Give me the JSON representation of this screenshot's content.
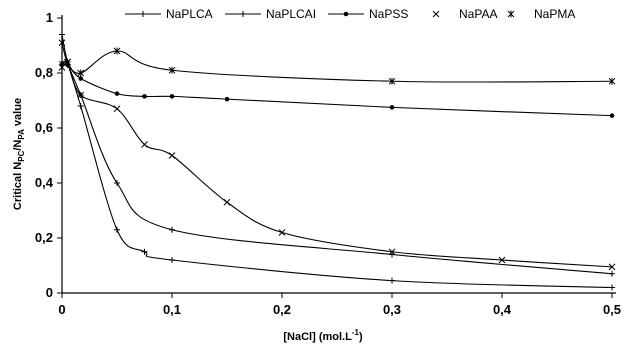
{
  "chart_data": {
    "type": "scatter",
    "title": "",
    "xlim": [
      0,
      0.5
    ],
    "ylim": [
      0,
      1
    ],
    "grid": false,
    "legend_position": "top",
    "x_ticks": [
      "0",
      "0,1",
      "0,2",
      "0,3",
      "0,4",
      "0,5"
    ],
    "y_ticks": [
      "0",
      "0,2",
      "0,4",
      "0,6",
      "0,8",
      "1"
    ],
    "xlabel": {
      "main": "[NaCl] (mol.L",
      "sup": "-1",
      "end": ")"
    },
    "ylabel": {
      "a": "Critical N",
      "sub1": "PC",
      "b": "/N",
      "sub2": "PA",
      "c": " value"
    },
    "series": [
      {
        "name": "NaPLCA",
        "marker": "dash",
        "show_line": true,
        "color": "#000000",
        "points": [
          [
            0,
            0.94
          ],
          [
            0.005,
            0.84
          ],
          [
            0.017,
            0.68
          ],
          [
            0.05,
            0.23
          ],
          [
            0.075,
            0.15
          ],
          [
            0.1,
            0.12
          ],
          [
            0.3,
            0.045
          ],
          [
            0.5,
            0.02
          ]
        ]
      },
      {
        "name": "NaPLCAI",
        "marker": "dash",
        "show_line": true,
        "color": "#000000",
        "points": [
          [
            0,
            0.84
          ],
          [
            0.005,
            0.83
          ],
          [
            0.017,
            0.72
          ],
          [
            0.05,
            0.4
          ],
          [
            0.1,
            0.23
          ],
          [
            0.3,
            0.14
          ],
          [
            0.5,
            0.07
          ]
        ]
      },
      {
        "name": "NaPSS",
        "marker": "dot",
        "show_line": true,
        "color": "#000000",
        "points": [
          [
            0,
            0.83
          ],
          [
            0.005,
            0.83
          ],
          [
            0.017,
            0.78
          ],
          [
            0.05,
            0.725
          ],
          [
            0.075,
            0.715
          ],
          [
            0.1,
            0.715
          ],
          [
            0.15,
            0.705
          ],
          [
            0.3,
            0.675
          ],
          [
            0.5,
            0.645
          ]
        ]
      },
      {
        "name": "NaPAA",
        "marker": "x",
        "show_line": true,
        "color": "#000000",
        "points": [
          [
            0,
            0.82
          ],
          [
            0.005,
            0.84
          ],
          [
            0.017,
            0.72
          ],
          [
            0.05,
            0.67
          ],
          [
            0.075,
            0.54
          ],
          [
            0.1,
            0.5
          ],
          [
            0.15,
            0.33
          ],
          [
            0.2,
            0.22
          ],
          [
            0.3,
            0.15
          ],
          [
            0.4,
            0.12
          ],
          [
            0.5,
            0.095
          ]
        ]
      },
      {
        "name": "NaPMA",
        "marker": "star",
        "show_line": true,
        "color": "#000000",
        "points": [
          [
            0,
            0.91
          ],
          [
            0.005,
            0.84
          ],
          [
            0.017,
            0.8
          ],
          [
            0.05,
            0.88
          ],
          [
            0.1,
            0.81
          ],
          [
            0.3,
            0.77
          ],
          [
            0.5,
            0.77
          ]
        ]
      }
    ]
  }
}
